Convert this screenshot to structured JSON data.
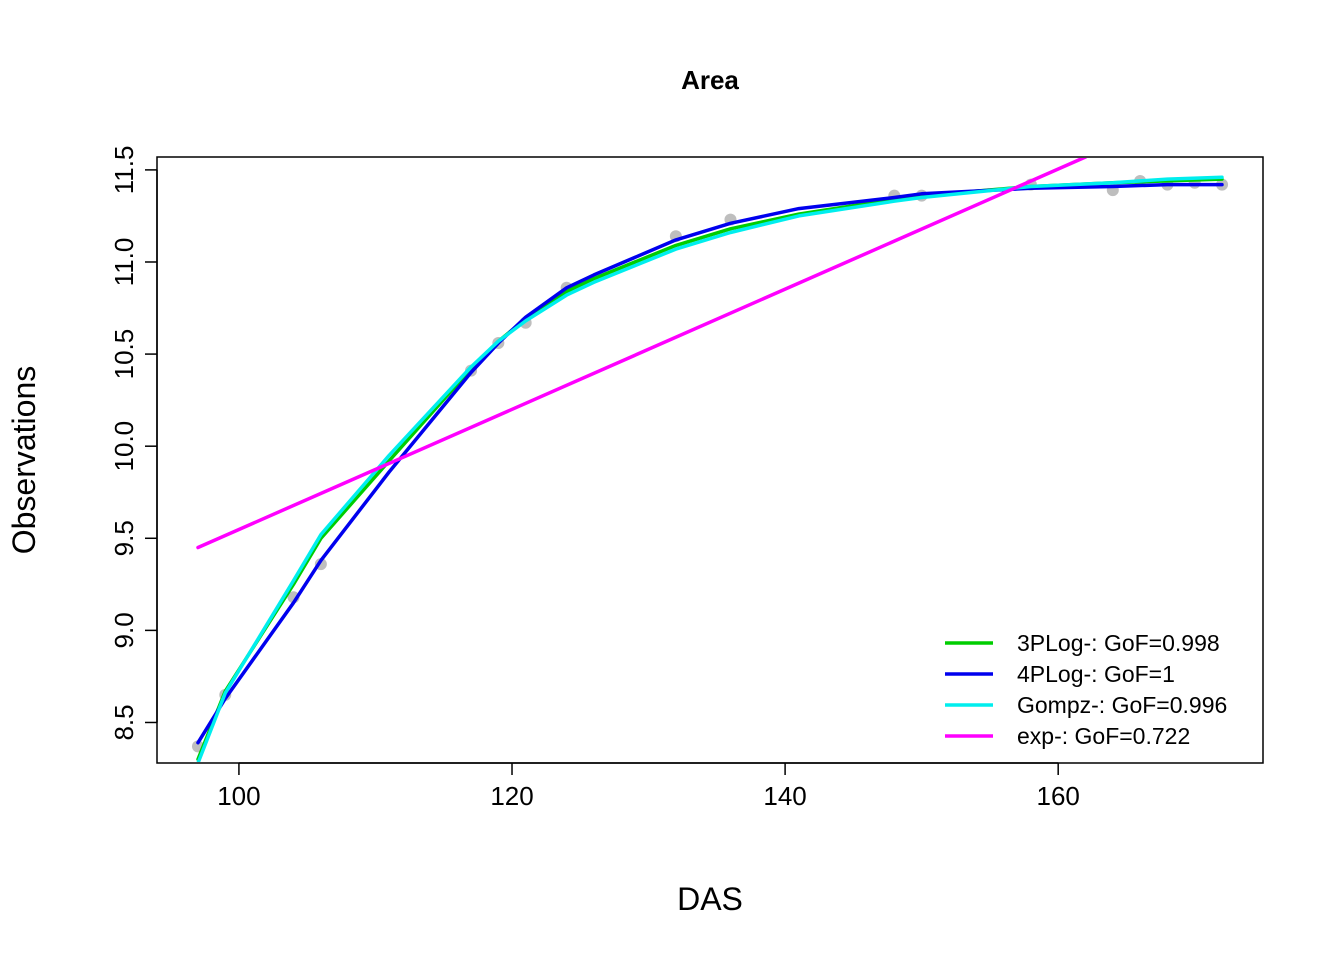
{
  "chart_data": {
    "type": "scatter",
    "title": "Area",
    "xlabel": "DAS",
    "ylabel": "Observations",
    "xlim": [
      94,
      175
    ],
    "ylim": [
      8.28,
      11.57
    ],
    "xticks": [
      100,
      120,
      140,
      160
    ],
    "yticks": [
      8.5,
      9.0,
      9.5,
      10.0,
      10.5,
      11.0,
      11.5
    ],
    "ytick_labels": [
      "8.5",
      "9.0",
      "9.5",
      "10.0",
      "10.5",
      "11.0",
      "11.5"
    ],
    "legend_position": "bottom-right",
    "points_color": "#bebebe",
    "observations": {
      "x": [
        97,
        99,
        104,
        106,
        117,
        119,
        121,
        124,
        132,
        136,
        148,
        150,
        158,
        164,
        166,
        168,
        170,
        172
      ],
      "y": [
        8.37,
        8.65,
        9.18,
        9.36,
        10.41,
        10.56,
        10.67,
        10.86,
        11.14,
        11.23,
        11.36,
        11.36,
        11.42,
        11.39,
        11.44,
        11.42,
        11.43,
        11.42
      ]
    },
    "series": [
      {
        "name": "3PLog-: GoF=0.998",
        "color": "#00cd00",
        "x": [
          97,
          99,
          104,
          106,
          111,
          117,
          119,
          121,
          124,
          126,
          132,
          136,
          141,
          148,
          150,
          158,
          164,
          168,
          172
        ],
        "y": [
          8.3,
          8.67,
          9.25,
          9.5,
          9.92,
          10.42,
          10.57,
          10.69,
          10.84,
          10.91,
          11.09,
          11.18,
          11.26,
          11.34,
          11.36,
          11.41,
          11.43,
          11.44,
          11.45
        ]
      },
      {
        "name": "4PLog-: GoF=1",
        "color": "#0000ee",
        "x": [
          97,
          99,
          104,
          106,
          111,
          117,
          119,
          121,
          124,
          126,
          132,
          136,
          141,
          148,
          150,
          158,
          164,
          168,
          172
        ],
        "y": [
          8.39,
          8.63,
          9.15,
          9.38,
          9.86,
          10.4,
          10.56,
          10.7,
          10.86,
          10.93,
          11.12,
          11.21,
          11.29,
          11.35,
          11.37,
          11.4,
          11.41,
          11.42,
          11.42
        ]
      },
      {
        "name": "Gompz-: GoF=0.996",
        "color": "#00eeee",
        "x": [
          97,
          99,
          104,
          106,
          111,
          117,
          119,
          121,
          124,
          126,
          132,
          136,
          141,
          148,
          150,
          158,
          164,
          168,
          172
        ],
        "y": [
          8.28,
          8.66,
          9.27,
          9.52,
          9.95,
          10.43,
          10.57,
          10.68,
          10.82,
          10.89,
          11.07,
          11.16,
          11.25,
          11.33,
          11.35,
          11.41,
          11.43,
          11.45,
          11.46
        ]
      },
      {
        "name": "exp-: GoF=0.722",
        "color": "#ff00ff",
        "x": [
          97,
          162
        ],
        "y": [
          9.45,
          11.57
        ]
      }
    ]
  }
}
